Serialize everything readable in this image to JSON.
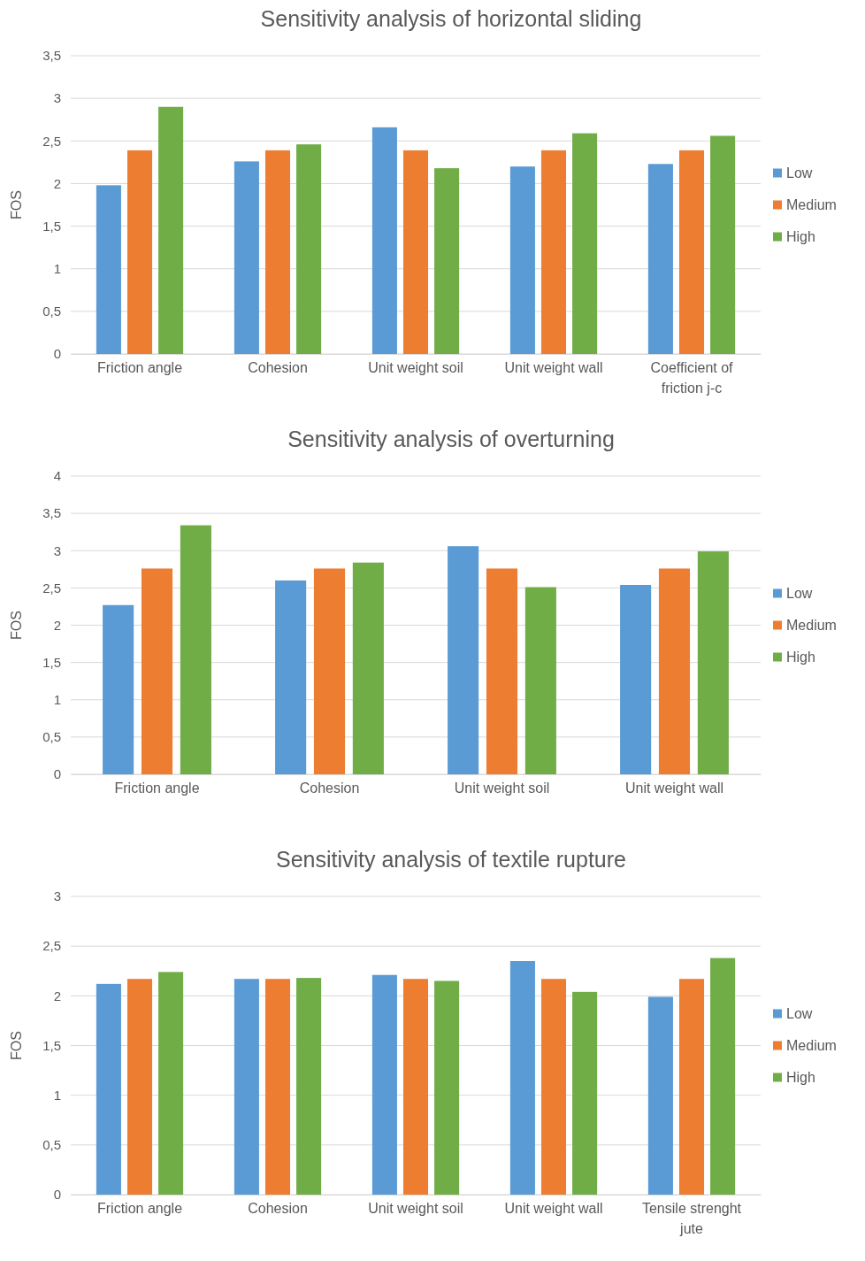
{
  "chart_data": [
    {
      "type": "bar",
      "title": "Sensitivity analysis of horizontal sliding",
      "ylabel": "FOS",
      "categories": [
        "Friction angle",
        "Cohesion",
        "Unit weight soil",
        "Unit weight wall",
        "Coefficient of friction j-c"
      ],
      "series": [
        {
          "name": "Low",
          "color": "#5b9bd5",
          "values": [
            1.98,
            2.26,
            2.66,
            2.2,
            2.23
          ]
        },
        {
          "name": "Medium",
          "color": "#ed7d31",
          "values": [
            2.39,
            2.39,
            2.39,
            2.39,
            2.39
          ]
        },
        {
          "name": "High",
          "color": "#70ad47",
          "values": [
            2.9,
            2.46,
            2.18,
            2.59,
            2.56
          ]
        }
      ],
      "ylim": [
        0,
        3.5
      ],
      "yticks": [
        0,
        {
          "value": 0.5,
          "label": "0,5"
        },
        1,
        {
          "value": 1.5,
          "label": "1,5"
        },
        2,
        {
          "value": 2.5,
          "label": "2,5"
        },
        3,
        {
          "value": 3.5,
          "label": "3,5"
        }
      ],
      "grid": "y",
      "legend": "right"
    },
    {
      "type": "bar",
      "title": "Sensitivity analysis of overturning",
      "ylabel": "FOS",
      "categories": [
        "Friction angle",
        "Cohesion",
        "Unit weight soil",
        "Unit weight wall"
      ],
      "series": [
        {
          "name": "Low",
          "color": "#5b9bd5",
          "values": [
            2.27,
            2.6,
            3.06,
            2.54
          ]
        },
        {
          "name": "Medium",
          "color": "#ed7d31",
          "values": [
            2.76,
            2.76,
            2.76,
            2.76
          ]
        },
        {
          "name": "High",
          "color": "#70ad47",
          "values": [
            3.34,
            2.84,
            2.51,
            2.99
          ]
        }
      ],
      "ylim": [
        0,
        4
      ],
      "yticks": [
        0,
        {
          "value": 0.5,
          "label": "0,5"
        },
        1,
        {
          "value": 1.5,
          "label": "1,5"
        },
        2,
        {
          "value": 2.5,
          "label": "2,5"
        },
        3,
        {
          "value": 3.5,
          "label": "3,5"
        },
        4
      ],
      "grid": "y",
      "legend": "right"
    },
    {
      "type": "bar",
      "title": "Sensitivity analysis of textile rupture",
      "ylabel": "FOS",
      "categories": [
        "Friction angle",
        "Cohesion",
        "Unit weight soil",
        "Unit weight wall",
        "Tensile strenght jute"
      ],
      "series": [
        {
          "name": "Low",
          "color": "#5b9bd5",
          "values": [
            2.12,
            2.17,
            2.21,
            2.35,
            1.99
          ]
        },
        {
          "name": "Medium",
          "color": "#ed7d31",
          "values": [
            2.17,
            2.17,
            2.17,
            2.17,
            2.17
          ]
        },
        {
          "name": "High",
          "color": "#70ad47",
          "values": [
            2.24,
            2.18,
            2.15,
            2.04,
            2.38
          ]
        }
      ],
      "ylim": [
        0,
        3
      ],
      "yticks": [
        0,
        {
          "value": 0.5,
          "label": "0,5"
        },
        1,
        {
          "value": 1.5,
          "label": "1,5"
        },
        2,
        {
          "value": 2.5,
          "label": "2,5"
        },
        3
      ],
      "grid": "y",
      "legend": "right"
    }
  ]
}
